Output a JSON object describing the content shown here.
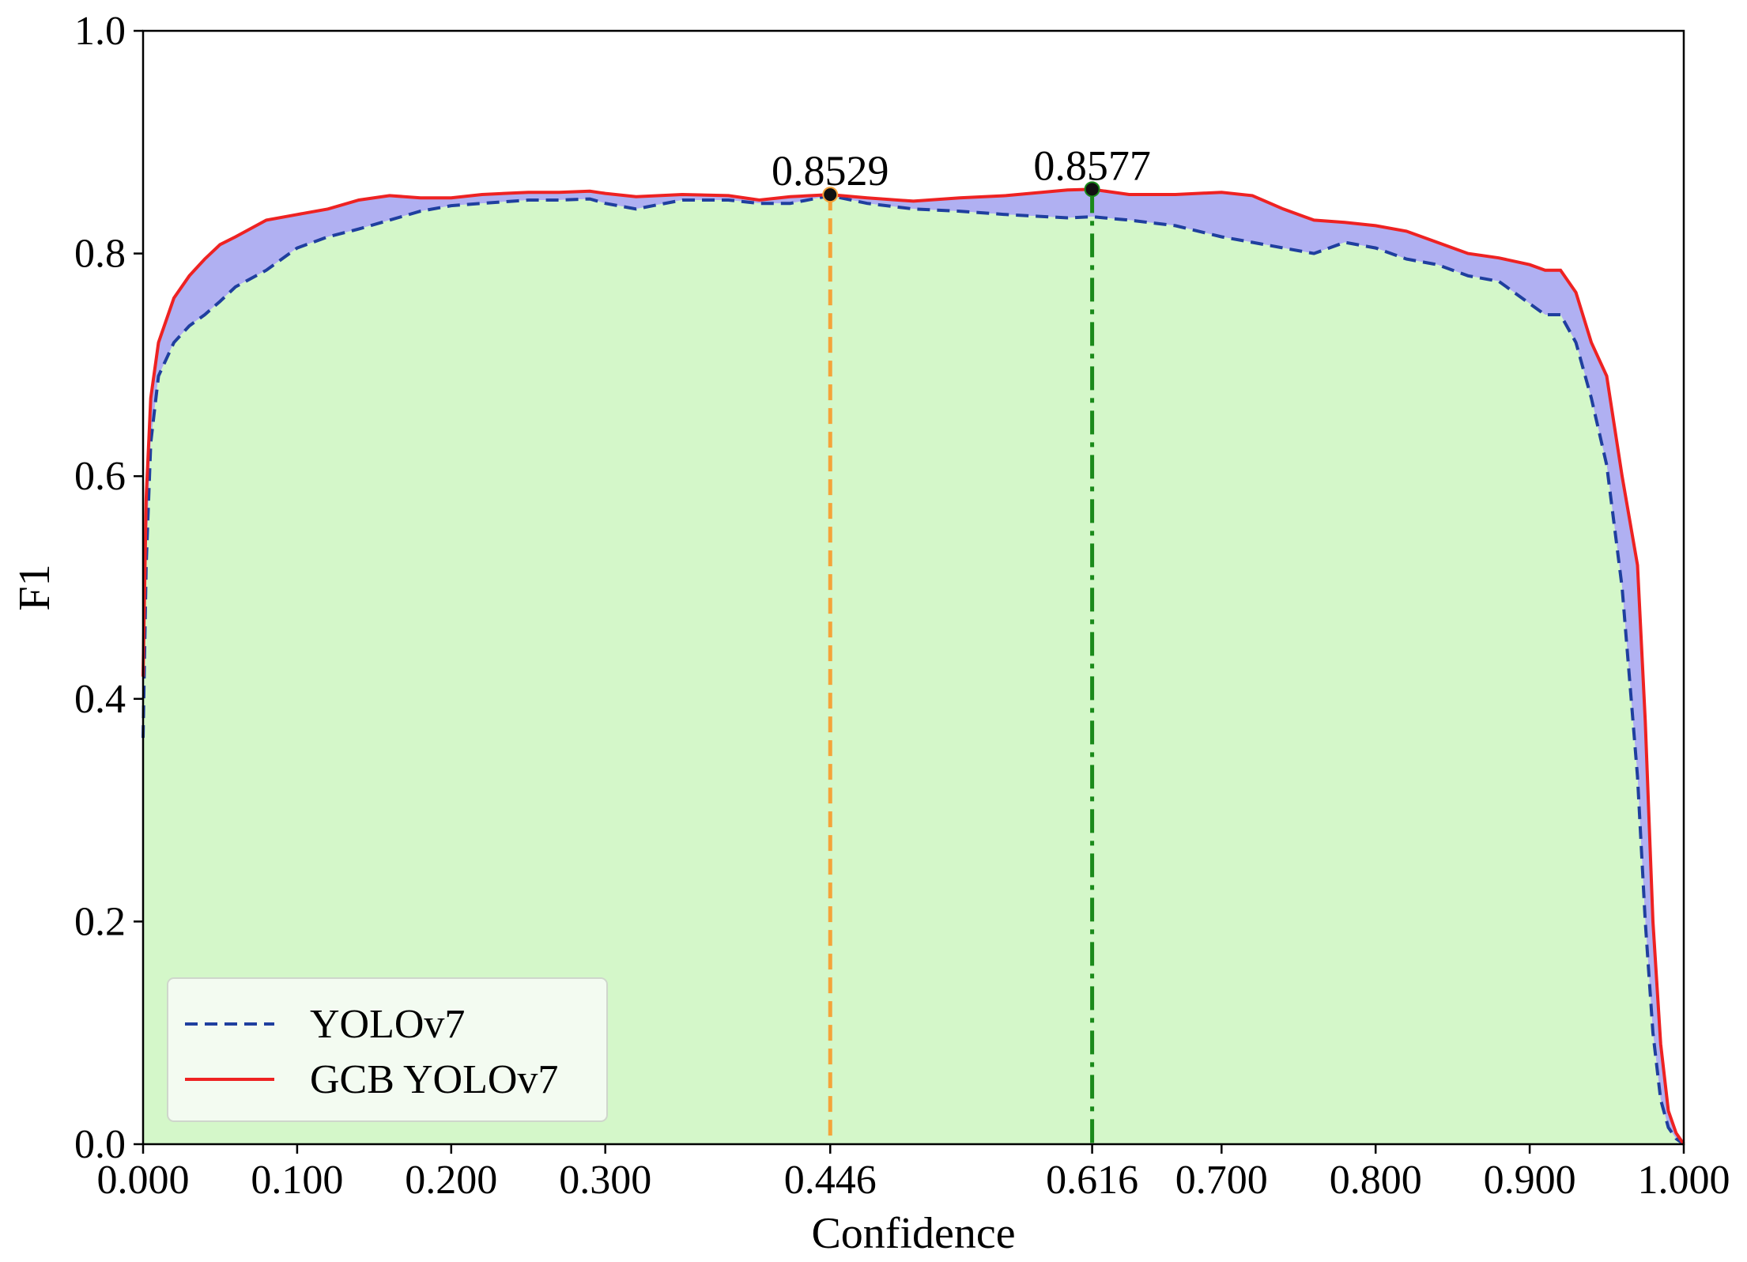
{
  "chart_data": {
    "type": "line",
    "xlabel": "Confidence",
    "ylabel": "F1",
    "xlim": [
      0,
      1
    ],
    "ylim": [
      0,
      1
    ],
    "x_ticks": [
      "0.000",
      "0.100",
      "0.200",
      "0.300",
      "0.446",
      "0.616",
      "0.700",
      "0.800",
      "0.900",
      "1.000"
    ],
    "x_tick_values": [
      0,
      0.1,
      0.2,
      0.3,
      0.446,
      0.616,
      0.7,
      0.8,
      0.9,
      1.0
    ],
    "y_ticks": [
      "0.0",
      "0.2",
      "0.4",
      "0.6",
      "0.8",
      "1.0"
    ],
    "y_tick_values": [
      0,
      0.2,
      0.4,
      0.6,
      0.8,
      1.0
    ],
    "grid": false,
    "legend_position": "lower-left",
    "series": [
      {
        "name": "YOLOv7",
        "style": "dashed",
        "color": "#1f3f9f",
        "fill_color": "#d4f7c9",
        "x": [
          0,
          0.002,
          0.005,
          0.01,
          0.02,
          0.03,
          0.04,
          0.05,
          0.06,
          0.08,
          0.1,
          0.12,
          0.14,
          0.16,
          0.18,
          0.2,
          0.22,
          0.25,
          0.27,
          0.29,
          0.3,
          0.32,
          0.35,
          0.38,
          0.4,
          0.42,
          0.446,
          0.47,
          0.5,
          0.53,
          0.56,
          0.6,
          0.616,
          0.64,
          0.67,
          0.7,
          0.72,
          0.74,
          0.76,
          0.78,
          0.8,
          0.82,
          0.84,
          0.86,
          0.88,
          0.9,
          0.91,
          0.92,
          0.93,
          0.94,
          0.95,
          0.96,
          0.97,
          0.975,
          0.98,
          0.985,
          0.99,
          0.995,
          1.0
        ],
        "y": [
          0.365,
          0.52,
          0.63,
          0.69,
          0.72,
          0.735,
          0.745,
          0.757,
          0.77,
          0.785,
          0.805,
          0.815,
          0.822,
          0.83,
          0.838,
          0.843,
          0.845,
          0.848,
          0.848,
          0.849,
          0.845,
          0.84,
          0.848,
          0.848,
          0.845,
          0.845,
          0.852,
          0.845,
          0.84,
          0.838,
          0.835,
          0.832,
          0.833,
          0.83,
          0.825,
          0.815,
          0.81,
          0.805,
          0.8,
          0.81,
          0.805,
          0.795,
          0.79,
          0.78,
          0.775,
          0.755,
          0.745,
          0.745,
          0.72,
          0.67,
          0.61,
          0.5,
          0.33,
          0.2,
          0.1,
          0.04,
          0.015,
          0.005,
          0.0
        ]
      },
      {
        "name": "GCB YOLOv7",
        "style": "solid",
        "color": "#ee2222",
        "fill_color": "#b0b0f2",
        "x": [
          0,
          0.002,
          0.005,
          0.01,
          0.02,
          0.03,
          0.04,
          0.05,
          0.06,
          0.08,
          0.1,
          0.12,
          0.14,
          0.16,
          0.18,
          0.2,
          0.22,
          0.25,
          0.27,
          0.29,
          0.3,
          0.32,
          0.35,
          0.38,
          0.4,
          0.42,
          0.446,
          0.47,
          0.5,
          0.53,
          0.56,
          0.6,
          0.616,
          0.64,
          0.67,
          0.7,
          0.72,
          0.74,
          0.76,
          0.78,
          0.8,
          0.82,
          0.84,
          0.86,
          0.88,
          0.9,
          0.91,
          0.92,
          0.93,
          0.94,
          0.95,
          0.96,
          0.97,
          0.975,
          0.98,
          0.985,
          0.99,
          0.995,
          1.0
        ],
        "y": [
          0.42,
          0.58,
          0.67,
          0.72,
          0.76,
          0.78,
          0.795,
          0.808,
          0.815,
          0.83,
          0.835,
          0.84,
          0.848,
          0.852,
          0.85,
          0.85,
          0.853,
          0.855,
          0.855,
          0.856,
          0.854,
          0.851,
          0.853,
          0.852,
          0.848,
          0.851,
          0.8529,
          0.85,
          0.847,
          0.85,
          0.852,
          0.857,
          0.8577,
          0.853,
          0.853,
          0.855,
          0.852,
          0.84,
          0.83,
          0.828,
          0.825,
          0.82,
          0.81,
          0.8,
          0.796,
          0.79,
          0.785,
          0.785,
          0.765,
          0.72,
          0.69,
          0.6,
          0.52,
          0.38,
          0.2,
          0.09,
          0.03,
          0.01,
          0.0
        ]
      }
    ],
    "annotations": [
      {
        "text": "0.8529",
        "x": 0.446,
        "y": 0.8529,
        "line_color": "#f5a33a",
        "line_style": "dashed"
      },
      {
        "text": "0.8577",
        "x": 0.616,
        "y": 0.8577,
        "line_color": "#1a8a1a",
        "line_style": "dashdot"
      }
    ]
  }
}
